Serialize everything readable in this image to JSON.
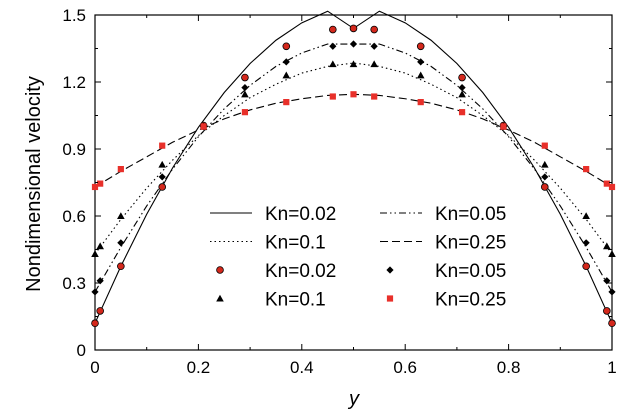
{
  "chart_data": {
    "type": "line",
    "title": "",
    "xlabel": "y",
    "ylabel": "Nondimensional  velocity",
    "xlim": [
      0,
      1
    ],
    "ylim": [
      0,
      1.5
    ],
    "xticks": [
      0,
      0.2,
      0.4,
      0.6,
      0.8,
      1
    ],
    "xtick_labels": [
      "0",
      "0.2",
      "0.4",
      "0.6",
      "0.8",
      "1"
    ],
    "yticks": [
      0,
      0.3,
      0.6,
      0.9,
      1.2,
      1.5
    ],
    "ytick_labels": [
      "0",
      "0.3",
      "0.6",
      "0.9",
      "1.2",
      "1.5"
    ],
    "grid": false,
    "legend_position": "center-bottom, two columns",
    "series": [
      {
        "name": "Kn=0.02",
        "style": "line",
        "dash": "solid",
        "color": "#000000",
        "x": [
          0,
          0.05,
          0.1,
          0.15,
          0.2,
          0.25,
          0.3,
          0.35,
          0.4,
          0.45,
          0.5,
          0.55,
          0.6,
          0.65,
          0.7,
          0.75,
          0.8,
          0.85,
          0.9,
          0.95,
          1
        ],
        "y": [
          0.12,
          0.375,
          0.608,
          0.815,
          0.997,
          1.153,
          1.283,
          1.387,
          1.465,
          1.517,
          1.44,
          1.517,
          1.465,
          1.387,
          1.283,
          1.153,
          0.997,
          0.815,
          0.608,
          0.375,
          0.12
        ]
      },
      {
        "name": "Kn=0.05",
        "style": "line",
        "dash": "dashdotdot",
        "color": "#000000",
        "x": [
          0,
          0.05,
          0.1,
          0.15,
          0.2,
          0.25,
          0.3,
          0.35,
          0.4,
          0.45,
          0.5,
          0.55,
          0.6,
          0.65,
          0.7,
          0.75,
          0.8,
          0.85,
          0.9,
          0.95,
          1
        ],
        "y": [
          0.26,
          0.46,
          0.645,
          0.81,
          0.955,
          1.08,
          1.185,
          1.27,
          1.33,
          1.37,
          1.37,
          1.37,
          1.33,
          1.27,
          1.185,
          1.08,
          0.955,
          0.81,
          0.645,
          0.46,
          0.26
        ]
      },
      {
        "name": "Kn=0.1",
        "style": "line",
        "dash": "dotted",
        "color": "#000000",
        "x": [
          0,
          0.05,
          0.1,
          0.15,
          0.2,
          0.25,
          0.3,
          0.35,
          0.4,
          0.45,
          0.5,
          0.55,
          0.6,
          0.65,
          0.7,
          0.75,
          0.8,
          0.85,
          0.9,
          0.95,
          1
        ],
        "y": [
          0.43,
          0.585,
          0.725,
          0.85,
          0.96,
          1.05,
          1.13,
          1.19,
          1.24,
          1.27,
          1.285,
          1.27,
          1.24,
          1.19,
          1.13,
          1.05,
          0.96,
          0.85,
          0.725,
          0.585,
          0.43
        ]
      },
      {
        "name": "Kn=0.25",
        "style": "line",
        "dash": "dashed",
        "color": "#000000",
        "x": [
          0,
          0.05,
          0.1,
          0.15,
          0.2,
          0.25,
          0.3,
          0.35,
          0.4,
          0.45,
          0.5,
          0.55,
          0.6,
          0.65,
          0.7,
          0.75,
          0.8,
          0.85,
          0.9,
          0.95,
          1
        ],
        "y": [
          0.73,
          0.8,
          0.865,
          0.93,
          0.985,
          1.035,
          1.075,
          1.105,
          1.125,
          1.14,
          1.145,
          1.14,
          1.125,
          1.105,
          1.075,
          1.035,
          0.985,
          0.93,
          0.865,
          0.8,
          0.73
        ]
      },
      {
        "name": "Kn=0.02",
        "style": "marker",
        "marker": "circle",
        "color": "#d4281c",
        "x": [
          0,
          0.01,
          0.05,
          0.13,
          0.21,
          0.29,
          0.37,
          0.46,
          0.5,
          0.54,
          0.63,
          0.71,
          0.79,
          0.87,
          0.95,
          0.99,
          1
        ],
        "y": [
          0.12,
          0.175,
          0.375,
          0.73,
          1.005,
          1.22,
          1.36,
          1.435,
          1.44,
          1.435,
          1.36,
          1.22,
          1.005,
          0.73,
          0.375,
          0.175,
          0.12
        ]
      },
      {
        "name": "Kn=0.05",
        "style": "marker",
        "marker": "diamond",
        "color": "#000000",
        "x": [
          0,
          0.01,
          0.05,
          0.13,
          0.21,
          0.29,
          0.37,
          0.46,
          0.5,
          0.54,
          0.63,
          0.71,
          0.79,
          0.87,
          0.95,
          0.99,
          1
        ],
        "y": [
          0.26,
          0.31,
          0.48,
          0.775,
          1.0,
          1.175,
          1.29,
          1.36,
          1.37,
          1.36,
          1.29,
          1.175,
          1.0,
          0.775,
          0.48,
          0.31,
          0.26
        ]
      },
      {
        "name": "Kn=0.1",
        "style": "marker",
        "marker": "triangle",
        "color": "#000000",
        "x": [
          0,
          0.01,
          0.05,
          0.13,
          0.21,
          0.29,
          0.37,
          0.46,
          0.5,
          0.54,
          0.63,
          0.71,
          0.79,
          0.87,
          0.95,
          0.99,
          1
        ],
        "y": [
          0.43,
          0.465,
          0.6,
          0.83,
          1.0,
          1.145,
          1.23,
          1.28,
          1.28,
          1.28,
          1.23,
          1.145,
          1.0,
          0.83,
          0.6,
          0.465,
          0.43
        ]
      },
      {
        "name": "Kn=0.25",
        "style": "marker",
        "marker": "square",
        "color": "#e8302a",
        "x": [
          0,
          0.01,
          0.05,
          0.13,
          0.21,
          0.29,
          0.37,
          0.46,
          0.5,
          0.54,
          0.63,
          0.71,
          0.79,
          0.87,
          0.95,
          0.99,
          1
        ],
        "y": [
          0.73,
          0.745,
          0.81,
          0.915,
          1.0,
          1.065,
          1.11,
          1.135,
          1.145,
          1.135,
          1.11,
          1.065,
          1.0,
          0.915,
          0.81,
          0.745,
          0.73
        ]
      }
    ]
  }
}
